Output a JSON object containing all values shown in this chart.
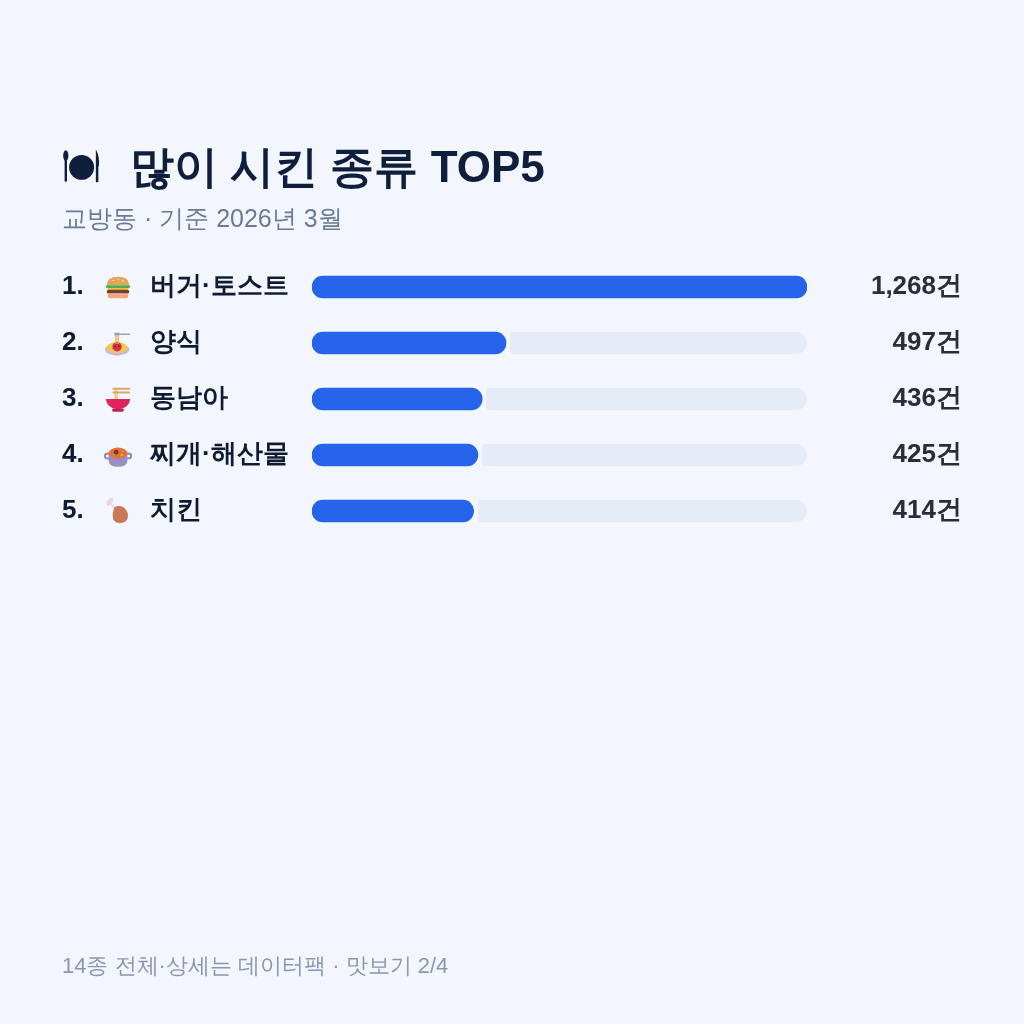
{
  "chart_data": {
    "type": "bar",
    "orientation": "horizontal",
    "title": "많이 시킨 종류 TOP5",
    "subtitle": "교방동 · 기준 2026년 3월",
    "categories": [
      "1. 버거·토스트",
      "2. 양식",
      "3. 동남아",
      "4. 찌개·해산물",
      "5. 치킨"
    ],
    "values": [
      1268,
      497,
      436,
      425,
      414
    ],
    "color": "#2563eb",
    "value_labels": [
      "1,268건",
      "497건",
      "436건",
      "425건",
      "414건"
    ],
    "tick_labels": "y",
    "legend": false,
    "annotations": [
      "14종 전체·상세는 데이터팩 · 맛보기 2/4"
    ]
  }
}
